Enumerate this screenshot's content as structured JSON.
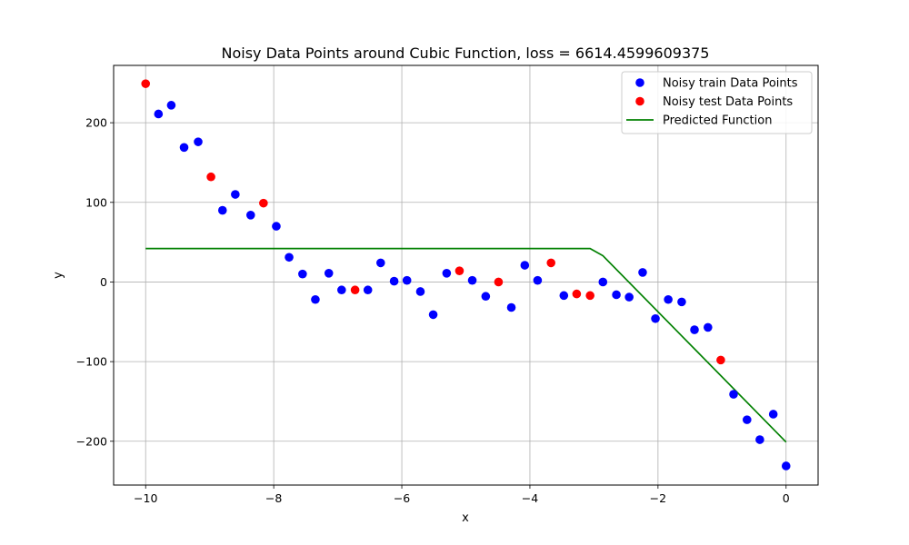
{
  "chart_data": {
    "type": "scatter",
    "title": "Noisy Data Points around Cubic Function, loss = 6614.4599609375",
    "xlabel": "x",
    "ylabel": "y",
    "xlim": [
      -10.5,
      0.5
    ],
    "ylim": [
      -255,
      272
    ],
    "xticks": [
      -10,
      -8,
      -6,
      -4,
      -2,
      0
    ],
    "yticks": [
      -200,
      -100,
      0,
      100,
      200
    ],
    "grid": true,
    "legend_position": "top-right",
    "series": [
      {
        "name": "Noisy train Data Points",
        "kind": "scatter",
        "color": "#0000ff",
        "points": [
          [
            -9.8,
            211
          ],
          [
            -9.6,
            222
          ],
          [
            -9.4,
            169
          ],
          [
            -9.18,
            176
          ],
          [
            -8.8,
            90
          ],
          [
            -8.6,
            110
          ],
          [
            -8.36,
            84
          ],
          [
            -7.96,
            70
          ],
          [
            -7.76,
            31
          ],
          [
            -7.55,
            10
          ],
          [
            -7.35,
            -22
          ],
          [
            -7.14,
            11
          ],
          [
            -6.94,
            -10
          ],
          [
            -6.53,
            -10
          ],
          [
            -6.33,
            24
          ],
          [
            -6.12,
            1
          ],
          [
            -5.92,
            2
          ],
          [
            -5.71,
            -12
          ],
          [
            -5.51,
            -41
          ],
          [
            -5.3,
            11
          ],
          [
            -4.9,
            2
          ],
          [
            -4.69,
            -18
          ],
          [
            -4.29,
            -32
          ],
          [
            -4.08,
            21
          ],
          [
            -3.88,
            2
          ],
          [
            -3.47,
            -17
          ],
          [
            -2.86,
            0
          ],
          [
            -2.65,
            -16
          ],
          [
            -2.45,
            -19
          ],
          [
            -2.24,
            12
          ],
          [
            -2.04,
            -46
          ],
          [
            -1.84,
            -22
          ],
          [
            -1.63,
            -25
          ],
          [
            -1.43,
            -60
          ],
          [
            -1.22,
            -57
          ],
          [
            -0.82,
            -141
          ],
          [
            -0.61,
            -173
          ],
          [
            -0.41,
            -198
          ],
          [
            -0.2,
            -166
          ],
          [
            0.0,
            -231
          ]
        ]
      },
      {
        "name": "Noisy test Data Points",
        "kind": "scatter",
        "color": "#ff0000",
        "points": [
          [
            -10.0,
            249
          ],
          [
            -8.98,
            132
          ],
          [
            -8.16,
            99
          ],
          [
            -6.73,
            -10
          ],
          [
            -5.1,
            14
          ],
          [
            -4.49,
            0
          ],
          [
            -3.67,
            24
          ],
          [
            -3.27,
            -15
          ],
          [
            -3.06,
            -17
          ],
          [
            -1.02,
            -98
          ]
        ]
      },
      {
        "name": "Predicted Function",
        "kind": "line",
        "color": "#008000",
        "points": [
          [
            -10.0,
            42
          ],
          [
            -3.06,
            42
          ],
          [
            -2.86,
            33
          ],
          [
            0.0,
            -201
          ]
        ]
      }
    ]
  }
}
